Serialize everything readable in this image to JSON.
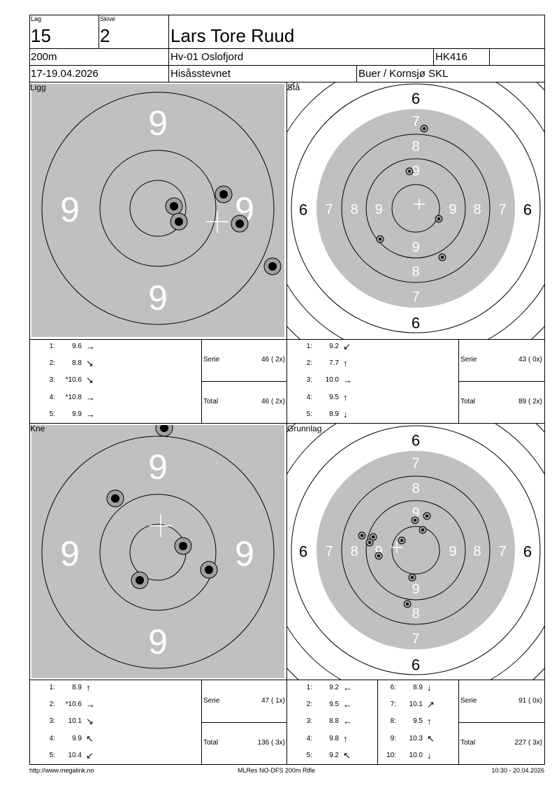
{
  "header": {
    "lag_label": "Lag",
    "lag": "15",
    "skive_label": "Skive",
    "skive": "2",
    "name": "Lars Tore Ruud",
    "distance": "200m",
    "club": "Hv-01 Oslofjord",
    "weapon": "HK416",
    "extra": "",
    "date": "17-19.04.2026",
    "event": "Hisåsstevnet",
    "range": "Buer / Kornsjø SKL"
  },
  "positions": [
    {
      "name": "Ligg",
      "ring_labels": [
        "9",
        "9",
        "9",
        "9"
      ],
      "shots": [
        {
          "n": "1:",
          "v": "9.6",
          "dir": "→"
        },
        {
          "n": "2:",
          "v": "8.8",
          "dir": "↘"
        },
        {
          "n": "3:",
          "v": "*10.6",
          "dir": "↘"
        },
        {
          "n": "4:",
          "v": "*10.8",
          "dir": "→"
        },
        {
          "n": "5:",
          "v": "9.9",
          "dir": "→"
        }
      ],
      "serie_label": "Serie",
      "serie": "46 ( 2x)",
      "total_label": "Total",
      "total": "46 ( 2x)"
    },
    {
      "name": "Stå",
      "shots": [
        {
          "n": "1:",
          "v": "9.2",
          "dir": "↙"
        },
        {
          "n": "2:",
          "v": "7.7",
          "dir": "↑"
        },
        {
          "n": "3:",
          "v": "10.0",
          "dir": "→"
        },
        {
          "n": "4:",
          "v": "9.5",
          "dir": "↑"
        },
        {
          "n": "5:",
          "v": "8.9",
          "dir": "↓"
        }
      ],
      "serie_label": "Serie",
      "serie": "43 ( 0x)",
      "total_label": "Total",
      "total": "89 ( 2x)"
    },
    {
      "name": "Kne",
      "ring_labels": [
        "9",
        "9",
        "9",
        "9"
      ],
      "shots": [
        {
          "n": "1:",
          "v": "8.9",
          "dir": "↑"
        },
        {
          "n": "2:",
          "v": "*10.6",
          "dir": "→"
        },
        {
          "n": "3:",
          "v": "10.1",
          "dir": "↘"
        },
        {
          "n": "4:",
          "v": "9.9",
          "dir": "↖"
        },
        {
          "n": "5:",
          "v": "10.4",
          "dir": "↙"
        }
      ],
      "serie_label": "Serie",
      "serie": "47 ( 1x)",
      "total_label": "Total",
      "total": "136 ( 3x)"
    },
    {
      "name": "Grunnlag",
      "shots": [
        {
          "n": "1:",
          "v": "9.2",
          "dir": "←"
        },
        {
          "n": "2:",
          "v": "9.5",
          "dir": "←"
        },
        {
          "n": "3:",
          "v": "8.8",
          "dir": "←"
        },
        {
          "n": "4:",
          "v": "9.8",
          "dir": "↑"
        },
        {
          "n": "5:",
          "v": "9.2",
          "dir": "↖"
        },
        {
          "n": "6:",
          "v": "8.9",
          "dir": "↓"
        },
        {
          "n": "7:",
          "v": "10.1",
          "dir": "↗"
        },
        {
          "n": "8:",
          "v": "9.5",
          "dir": "↑"
        },
        {
          "n": "9:",
          "v": "10.3",
          "dir": "↖"
        },
        {
          "n": "10:",
          "v": "10.0",
          "dir": "↓"
        }
      ],
      "serie_label": "Serie",
      "serie": "91 ( 0x)",
      "total_label": "Total",
      "total": "227 ( 3x)"
    }
  ],
  "ring_numbers": [
    "6",
    "7",
    "8",
    "9"
  ],
  "footer": {
    "url": "http://www.megalink.no",
    "program": "MLRes NO-DFS 200m Rifle",
    "timestamp": "10:30 - 20.04.2026"
  },
  "colors": {
    "target_gray": "#c0c0c0",
    "shot_gray": "#a0a0a0"
  }
}
